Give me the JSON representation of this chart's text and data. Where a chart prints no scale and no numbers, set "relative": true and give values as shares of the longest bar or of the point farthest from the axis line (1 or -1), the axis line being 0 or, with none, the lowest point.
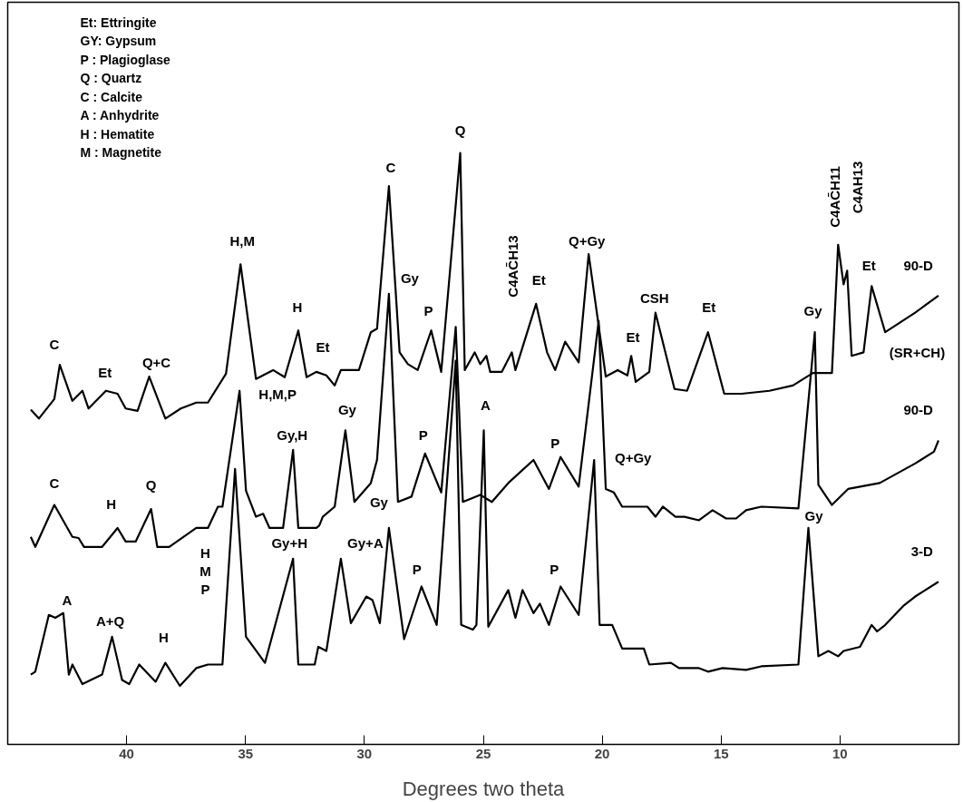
{
  "chart_data": {
    "type": "line",
    "relative": true,
    "xlabel": "Degrees two theta",
    "xlim": [
      45,
      5
    ],
    "xticks": [
      40,
      35,
      30,
      25,
      20,
      15,
      10
    ],
    "series": [
      {
        "name": "90-D",
        "color": "#000000",
        "x": [
          44.03,
          43.69,
          43.04,
          42.81,
          42.28,
          41.86,
          41.6,
          40.87,
          40.38,
          40.04,
          39.54,
          39.05,
          38.37,
          37.72,
          37.07,
          36.58,
          35.82,
          35.21,
          34.56,
          33.84,
          33.35,
          32.78,
          32.43,
          32.02,
          31.6,
          31.25,
          30.99,
          30.23,
          29.73,
          29.47,
          28.97,
          28.52,
          28.17,
          27.76,
          27.19,
          26.77,
          25.97,
          25.78,
          25.36,
          25.13,
          24.87,
          24.71,
          24.22,
          23.8,
          23.65,
          22.78,
          22.32,
          21.98,
          21.56,
          20.99,
          20.57,
          19.85,
          19.35,
          18.94,
          18.78,
          18.59,
          18.02,
          17.76,
          16.96,
          16.43,
          15.55,
          14.87,
          14.14,
          12.97,
          11.98,
          11.14,
          10.34,
          10.08,
          9.85,
          9.7,
          9.51,
          9.01,
          8.67,
          8.1,
          6.84,
          5.86
        ],
        "values": [
          0.566,
          0.551,
          0.584,
          0.642,
          0.581,
          0.598,
          0.568,
          0.598,
          0.593,
          0.568,
          0.564,
          0.622,
          0.551,
          0.568,
          0.578,
          0.578,
          0.627,
          0.812,
          0.618,
          0.633,
          0.621,
          0.7,
          0.621,
          0.63,
          0.624,
          0.607,
          0.633,
          0.633,
          0.697,
          0.703,
          0.944,
          0.663,
          0.643,
          0.633,
          0.7,
          0.63,
          1.0,
          0.633,
          0.663,
          0.643,
          0.657,
          0.63,
          0.63,
          0.663,
          0.633,
          0.745,
          0.663,
          0.633,
          0.681,
          0.646,
          0.829,
          0.622,
          0.633,
          0.624,
          0.657,
          0.613,
          0.63,
          0.73,
          0.601,
          0.598,
          0.697,
          0.593,
          0.593,
          0.598,
          0.607,
          0.628,
          0.628,
          0.845,
          0.778,
          0.801,
          0.657,
          0.663,
          0.775,
          0.697,
          0.73,
          0.759
        ]
      },
      {
        "name": "90-D",
        "color": "#000000",
        "x": [
          44.03,
          43.84,
          43.04,
          42.28,
          42.02,
          41.79,
          41.03,
          40.38,
          40.04,
          39.62,
          38.97,
          38.71,
          38.21,
          37.07,
          36.58,
          36.16,
          35.97,
          35.25,
          34.98,
          34.56,
          34.26,
          33.99,
          33.42,
          33.0,
          32.78,
          32.02,
          31.9,
          31.75,
          31.25,
          30.8,
          30.42,
          29.73,
          29.47,
          28.97,
          28.59,
          28.02,
          27.45,
          26.77,
          26.16,
          25.86,
          25.13,
          24.64,
          23.95,
          22.89,
          22.24,
          21.75,
          20.99,
          20.15,
          19.85,
          19.51,
          19.16,
          18.1,
          17.76,
          17.45,
          16.92,
          16.54,
          15.93,
          15.36,
          14.79,
          14.37,
          13.95,
          13.31,
          11.75,
          11.06,
          10.91,
          10.34,
          9.66,
          8.33,
          6.84,
          6.05,
          5.86
        ],
        "values": [
          0.351,
          0.334,
          0.405,
          0.351,
          0.349,
          0.334,
          0.334,
          0.366,
          0.343,
          0.343,
          0.398,
          0.334,
          0.334,
          0.366,
          0.366,
          0.402,
          0.402,
          0.598,
          0.429,
          0.385,
          0.39,
          0.366,
          0.366,
          0.498,
          0.366,
          0.366,
          0.37,
          0.385,
          0.402,
          0.531,
          0.41,
          0.442,
          0.481,
          0.762,
          0.41,
          0.419,
          0.492,
          0.426,
          0.706,
          0.41,
          0.422,
          0.41,
          0.442,
          0.481,
          0.432,
          0.486,
          0.436,
          0.716,
          0.432,
          0.426,
          0.402,
          0.402,
          0.385,
          0.402,
          0.385,
          0.385,
          0.379,
          0.396,
          0.382,
          0.382,
          0.396,
          0.402,
          0.399,
          0.697,
          0.439,
          0.405,
          0.432,
          0.442,
          0.475,
          0.495,
          0.514
        ]
      },
      {
        "name": "3-D",
        "color": "#000000",
        "x": [
          44.03,
          43.84,
          43.27,
          43.0,
          42.66,
          42.43,
          42.28,
          41.86,
          41.03,
          40.61,
          40.19,
          39.89,
          39.47,
          38.78,
          38.37,
          37.76,
          37.07,
          36.58,
          35.97,
          35.44,
          34.98,
          34.18,
          33.0,
          32.78,
          32.09,
          31.94,
          31.6,
          30.99,
          30.57,
          29.92,
          29.66,
          29.35,
          28.97,
          28.33,
          27.6,
          26.96,
          26.16,
          25.93,
          25.44,
          25.29,
          24.98,
          24.79,
          23.95,
          23.65,
          23.35,
          22.89,
          22.62,
          22.24,
          21.75,
          20.99,
          20.34,
          20.11,
          19.58,
          19.16,
          18.25,
          18.02,
          17.11,
          16.77,
          15.93,
          15.55,
          14.94,
          13.95,
          13.31,
          11.75,
          11.33,
          10.91,
          10.49,
          10.08,
          9.85,
          9.16,
          8.67,
          8.44,
          8.1,
          7.34,
          6.84,
          5.86
        ],
        "values": [
          0.118,
          0.123,
          0.219,
          0.214,
          0.222,
          0.118,
          0.135,
          0.102,
          0.118,
          0.182,
          0.109,
          0.102,
          0.135,
          0.106,
          0.138,
          0.099,
          0.129,
          0.135,
          0.135,
          0.466,
          0.182,
          0.138,
          0.314,
          0.135,
          0.135,
          0.165,
          0.158,
          0.314,
          0.205,
          0.25,
          0.244,
          0.205,
          0.366,
          0.178,
          0.267,
          0.202,
          0.649,
          0.202,
          0.194,
          0.202,
          0.531,
          0.199,
          0.261,
          0.214,
          0.261,
          0.222,
          0.238,
          0.202,
          0.267,
          0.219,
          0.481,
          0.202,
          0.202,
          0.162,
          0.162,
          0.135,
          0.138,
          0.129,
          0.129,
          0.123,
          0.129,
          0.126,
          0.132,
          0.135,
          0.366,
          0.149,
          0.158,
          0.149,
          0.158,
          0.165,
          0.202,
          0.191,
          0.202,
          0.234,
          0.25,
          0.275
        ]
      }
    ],
    "annotations": [
      "Et: Ettringite",
      "GY: Gypsum",
      "P : Plagioglase",
      "Q : Quartz",
      "C : Calcite",
      "A : Anhydrite",
      "H : Hematite",
      "M : Magnetite",
      {
        "text": "C",
        "x": 42.81,
        "y": 0.642
      },
      {
        "text": "Et",
        "x": 40.87,
        "y": 0.598
      },
      {
        "text": "Q+C",
        "x": 39.05,
        "y": 0.622
      },
      {
        "text": "H,M",
        "x": 35.21,
        "y": 0.812
      },
      {
        "text": "H",
        "x": 32.78,
        "y": 0.7
      },
      {
        "text": "Et",
        "x": 32.02,
        "y": 0.63
      },
      {
        "text": "C",
        "x": 28.97,
        "y": 0.944
      },
      {
        "text": "Q",
        "x": 25.97,
        "y": 1.0
      },
      {
        "text": "Gy",
        "x": 28.97,
        "y": 0.762
      },
      {
        "text": "P",
        "x": 27.19,
        "y": 0.7
      },
      {
        "text": "Et",
        "x": 22.78,
        "y": 0.745
      },
      {
        "text": "Q+Gy",
        "x": 20.57,
        "y": 0.829
      },
      {
        "text": "Et",
        "x": 18.78,
        "y": 0.657
      },
      {
        "text": "CSH",
        "x": 17.76,
        "y": 0.73
      },
      {
        "text": "Et",
        "x": 15.55,
        "y": 0.697
      },
      {
        "text": "Gy",
        "x": 11.06,
        "y": 0.697
      },
      {
        "text": "C4AC̄H11",
        "x": 10.08,
        "y": 0.845
      },
      {
        "text": "Et",
        "x": 8.67,
        "y": 0.775
      },
      {
        "text": "C",
        "x": 43.04,
        "y": 0.405
      },
      {
        "text": "H",
        "x": 40.38,
        "y": 0.366
      },
      {
        "text": "Q",
        "x": 38.97,
        "y": 0.398
      },
      {
        "text": "H,M,P",
        "x": 35.25,
        "y": 0.598
      },
      {
        "text": "Gy,H",
        "x": 33.0,
        "y": 0.498
      },
      {
        "text": "Gy",
        "x": 30.8,
        "y": 0.531
      },
      {
        "text": "P",
        "x": 27.45,
        "y": 0.492
      },
      {
        "text": "A",
        "x": 24.98,
        "y": 0.531
      },
      {
        "text": "P",
        "x": 21.75,
        "y": 0.486
      },
      {
        "text": "Q+Gy",
        "x": 20.34,
        "y": 0.481
      },
      {
        "text": "A",
        "x": 42.66,
        "y": 0.222
      },
      {
        "text": "A+Q",
        "x": 40.61,
        "y": 0.182
      },
      {
        "text": "H",
        "x": 38.37,
        "y": 0.138
      },
      {
        "text": "Gy+H",
        "x": 33.0,
        "y": 0.314
      },
      {
        "text": "Gy+A",
        "x": 30.99,
        "y": 0.314
      },
      {
        "text": "Gy",
        "x": 28.97,
        "y": 0.366
      },
      {
        "text": "P",
        "x": 27.6,
        "y": 0.267
      },
      {
        "text": "P",
        "x": 21.75,
        "y": 0.267
      },
      {
        "text": "Gy",
        "x": 11.33,
        "y": 0.366
      },
      "C4AC̄H13",
      "C4AH13",
      "(SR+CH)",
      "H\nM\nP"
    ]
  }
}
